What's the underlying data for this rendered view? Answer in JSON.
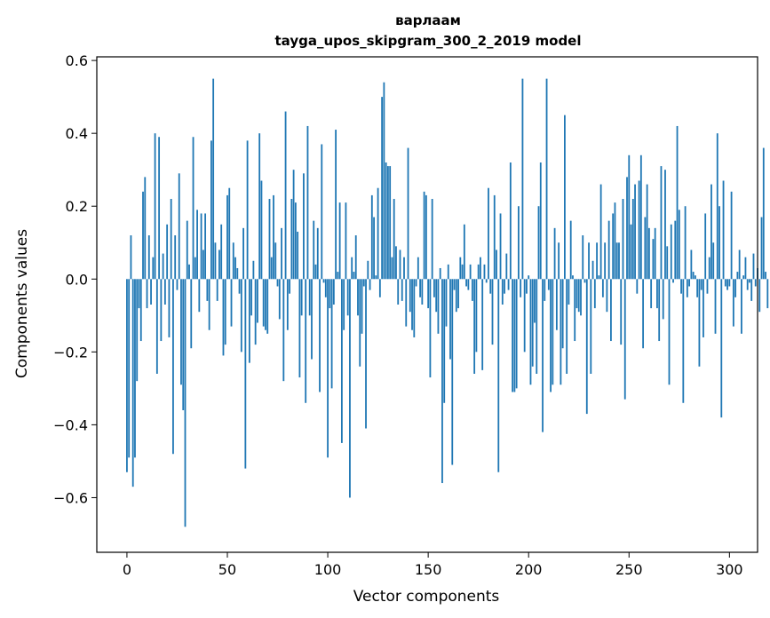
{
  "chart_data": {
    "type": "bar",
    "title": "варлаам",
    "subtitle": "tayga_upos_skipgram_300_2_2019 model",
    "xlabel": "Vector components",
    "ylabel": "Components values",
    "xlim": [
      -15,
      314
    ],
    "ylim": [
      -0.75,
      0.61
    ],
    "xticks": [
      0,
      50,
      100,
      150,
      200,
      250,
      300
    ],
    "xtick_labels": [
      "0",
      "50",
      "100",
      "150",
      "200",
      "250",
      "300"
    ],
    "yticks": [
      -0.6,
      -0.4,
      -0.2,
      0.0,
      0.2,
      0.4,
      0.6
    ],
    "ytick_labels": [
      "−0.6",
      "−0.4",
      "−0.2",
      "0.0",
      "0.2",
      "0.4",
      "0.6"
    ],
    "grid": false,
    "bar_color": "#1f77b4",
    "values": [
      -0.53,
      -0.49,
      0.12,
      -0.57,
      -0.49,
      -0.28,
      -0.08,
      -0.17,
      0.24,
      0.28,
      -0.08,
      0.12,
      -0.07,
      0.06,
      0.4,
      -0.26,
      0.39,
      -0.17,
      0.07,
      -0.07,
      0.15,
      -0.16,
      0.22,
      -0.48,
      0.12,
      -0.03,
      0.29,
      -0.29,
      -0.36,
      -0.68,
      0.16,
      0.04,
      -0.19,
      0.39,
      0.06,
      0.19,
      -0.09,
      0.18,
      0.08,
      0.18,
      -0.06,
      -0.14,
      0.38,
      0.55,
      0.1,
      -0.06,
      0.08,
      0.15,
      -0.21,
      -0.18,
      0.23,
      0.25,
      -0.13,
      0.1,
      0.06,
      0.03,
      -0.04,
      -0.2,
      0.14,
      -0.52,
      0.38,
      -0.23,
      -0.1,
      0.05,
      -0.18,
      -0.12,
      0.4,
      0.27,
      -0.13,
      -0.14,
      -0.15,
      0.22,
      0.06,
      0.23,
      0.1,
      -0.02,
      -0.11,
      0.14,
      -0.28,
      0.46,
      -0.14,
      -0.04,
      0.22,
      0.3,
      0.21,
      0.13,
      -0.27,
      -0.1,
      0.29,
      -0.34,
      0.42,
      -0.1,
      -0.22,
      0.16,
      0.04,
      0.14,
      -0.31,
      0.37,
      -0.01,
      -0.05,
      -0.49,
      -0.08,
      -0.3,
      -0.07,
      0.41,
      0.02,
      0.21,
      -0.45,
      -0.14,
      0.21,
      -0.1,
      -0.6,
      0.06,
      0.02,
      0.12,
      -0.1,
      -0.24,
      -0.15,
      -0.02,
      -0.41,
      0.05,
      -0.03,
      0.23,
      0.17,
      0.01,
      0.25,
      -0.05,
      0.5,
      0.54,
      0.32,
      0.31,
      0.31,
      0.06,
      0.22,
      0.09,
      -0.07,
      0.08,
      -0.06,
      0.06,
      -0.13,
      0.36,
      -0.09,
      -0.14,
      -0.16,
      -0.02,
      0.06,
      -0.05,
      -0.07,
      0.24,
      0.23,
      -0.08,
      -0.27,
      0.22,
      -0.05,
      -0.09,
      -0.15,
      0.03,
      -0.56,
      -0.34,
      -0.13,
      0.04,
      -0.22,
      -0.51,
      -0.03,
      -0.09,
      -0.08,
      0.06,
      0.04,
      0.15,
      -0.02,
      -0.03,
      0.04,
      -0.06,
      -0.26,
      -0.2,
      0.04,
      0.06,
      -0.25,
      0.04,
      -0.01,
      0.25,
      -0.04,
      -0.18,
      0.23,
      0.08,
      -0.53,
      0.18,
      -0.07,
      -0.04,
      0.07,
      -0.03,
      0.32,
      -0.31,
      -0.31,
      -0.3,
      0.2,
      -0.05,
      0.55,
      -0.2,
      -0.04,
      0.01,
      -0.29,
      -0.24,
      -0.12,
      -0.26,
      0.2,
      0.32,
      -0.42,
      -0.06,
      0.55,
      -0.03,
      -0.31,
      -0.29,
      0.14,
      -0.14,
      0.1,
      -0.29,
      -0.19,
      0.45,
      -0.26,
      -0.07,
      0.16,
      0.01,
      -0.17,
      -0.08,
      -0.09,
      -0.1,
      0.12,
      -0.01,
      -0.37,
      0.1,
      -0.26,
      0.05,
      -0.08,
      0.1,
      0.01,
      0.26,
      -0.05,
      0.1,
      -0.09,
      0.16,
      -0.17,
      0.18,
      0.21,
      0.1,
      0.1,
      -0.18,
      0.22,
      -0.33,
      0.28,
      0.34,
      0.15,
      0.22,
      0.26,
      -0.04,
      0.27,
      0.34,
      -0.19,
      0.17,
      0.26,
      0.14,
      -0.08,
      0.11,
      0.14,
      -0.08,
      -0.17,
      0.31,
      -0.11,
      0.3,
      0.09,
      -0.29,
      0.15,
      -0.01,
      0.16,
      0.42,
      0.19,
      -0.04,
      -0.34,
      0.2,
      -0.05,
      -0.02,
      0.08,
      0.02,
      0.01,
      -0.05,
      -0.24,
      -0.03,
      -0.16,
      0.18,
      -0.04,
      0.06,
      0.26,
      0.1,
      -0.15,
      0.4,
      0.2,
      -0.38,
      0.27,
      -0.02,
      -0.03,
      -0.02,
      0.24,
      -0.13,
      -0.05,
      0.02,
      0.08,
      -0.15,
      0.01,
      0.06,
      -0.03,
      -0.01,
      -0.06,
      0.07,
      -0.02,
      0.03,
      -0.09,
      0.17,
      0.36,
      0.02,
      -0.08
    ]
  }
}
